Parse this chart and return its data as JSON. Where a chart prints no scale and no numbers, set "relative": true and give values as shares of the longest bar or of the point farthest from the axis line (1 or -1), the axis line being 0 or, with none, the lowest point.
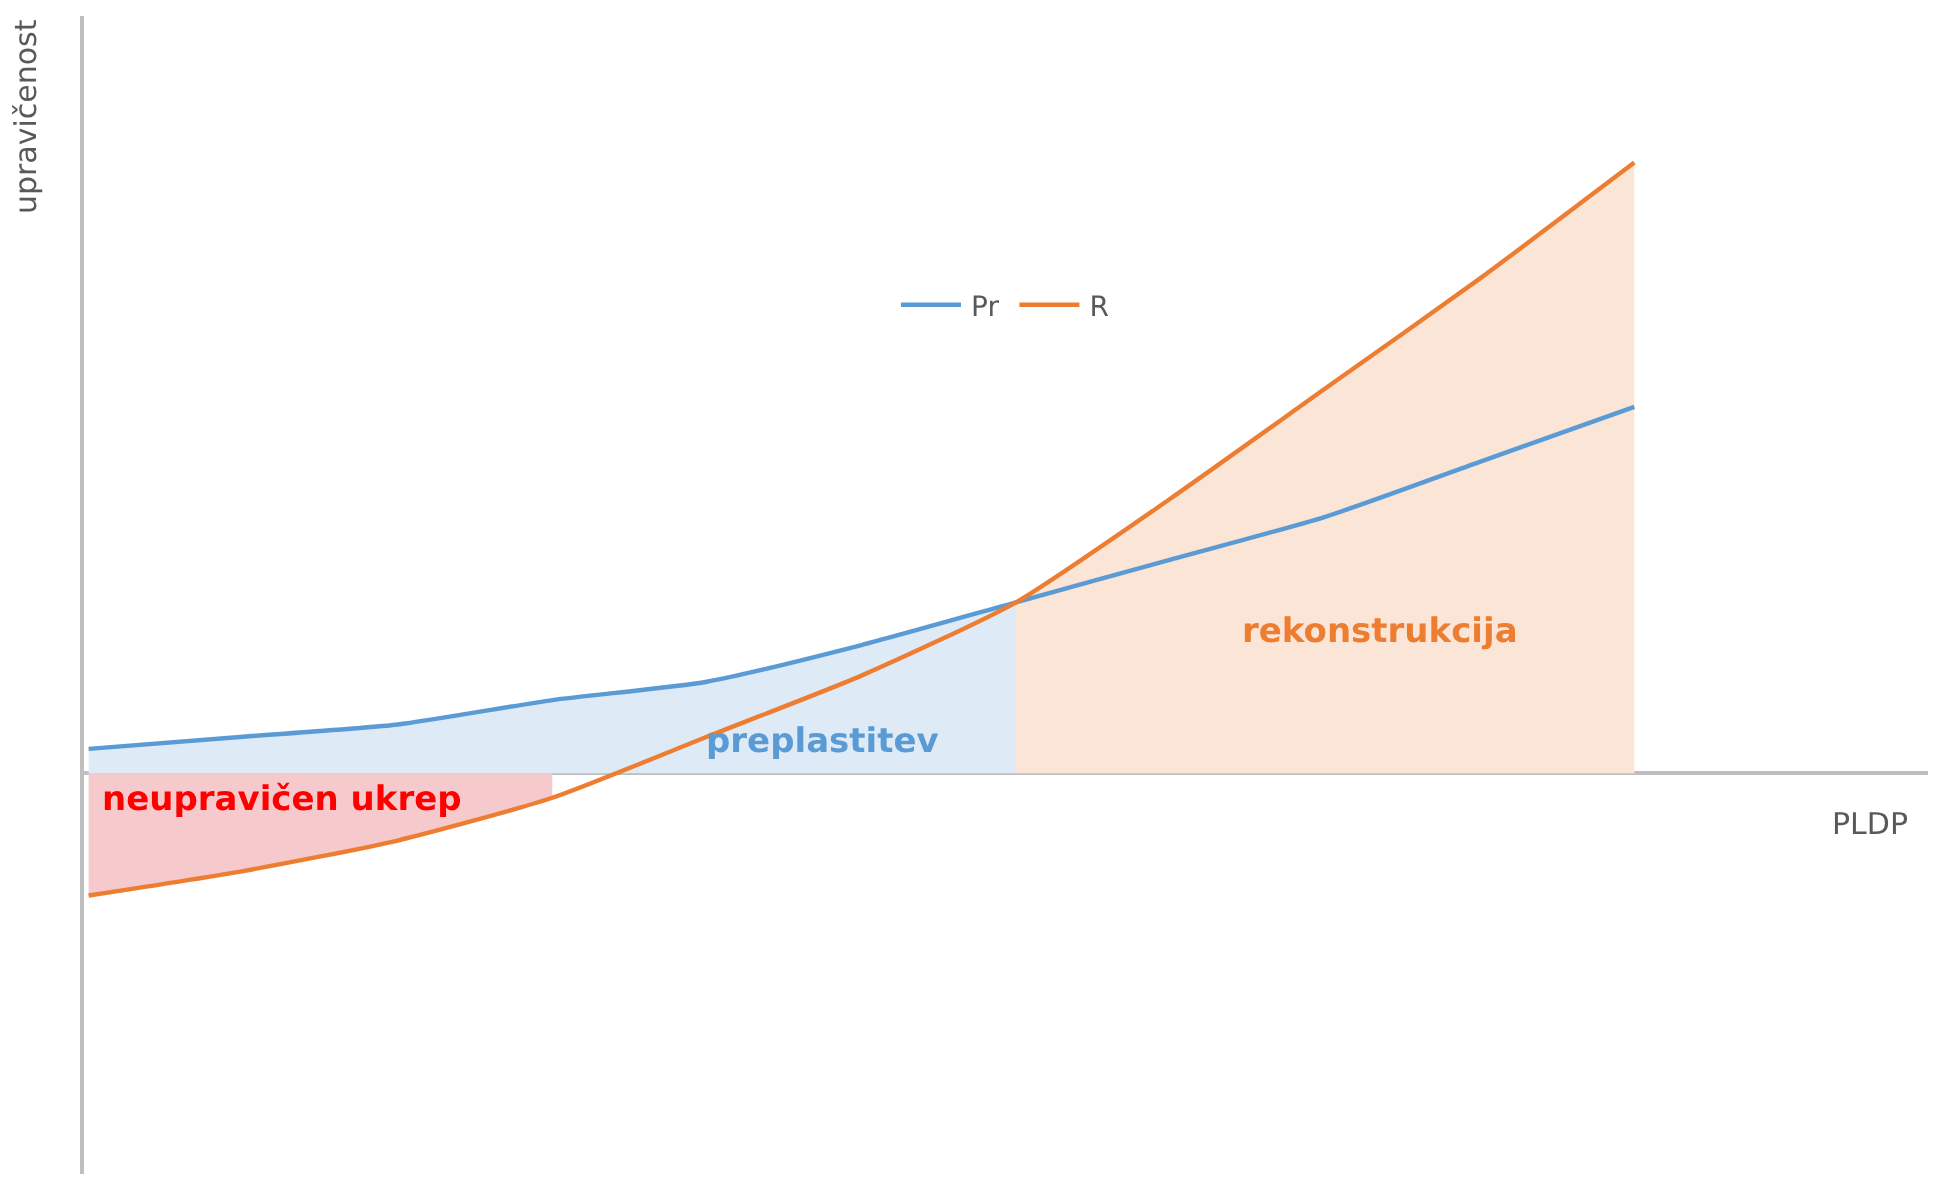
{
  "chart_data": {
    "type": "line",
    "relative": true,
    "xlabel": "PLDP",
    "ylabel": "upravičenost",
    "legend": "top",
    "marker": "none",
    "line_style": "solid",
    "categories": [
      null,
      null,
      null,
      null,
      null,
      null,
      null,
      null,
      null,
      null,
      null
    ],
    "series": [
      {
        "type": "area",
        "color": "#deebf7",
        "values": [
          0.04,
          0.06,
          0.08,
          0.12,
          0.15,
          0.21,
          0.28,
          null,
          null,
          null,
          null
        ]
      },
      {
        "type": "area",
        "color": "#fbe5d6",
        "values": [
          null,
          null,
          null,
          null,
          null,
          null,
          0.28,
          0.45,
          0.63,
          0.81,
          1.0
        ]
      },
      {
        "type": "area",
        "color": "#f6c9cc",
        "values": [
          -0.2,
          -0.16,
          -0.11,
          -0.04,
          null,
          null,
          null,
          null,
          null,
          null,
          null
        ]
      },
      {
        "name": "Pr",
        "color": "#5b9bd5",
        "values": [
          0.04,
          0.06,
          0.08,
          0.12,
          0.15,
          0.21,
          0.28,
          0.35,
          0.42,
          0.51,
          0.6
        ]
      },
      {
        "name": "R",
        "color": "#ed7d31",
        "values": [
          -0.2,
          -0.16,
          -0.11,
          -0.04,
          0.06,
          0.16,
          0.28,
          0.45,
          0.63,
          0.81,
          1.0
        ]
      }
    ],
    "annotations": [
      "preplastitev",
      "rekonstrukcija",
      "neupravičen ukrep"
    ]
  }
}
